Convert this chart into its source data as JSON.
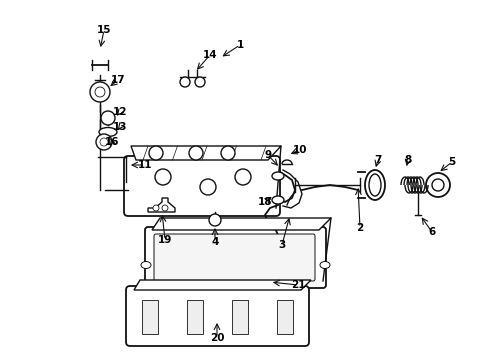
{
  "background_color": "#ffffff",
  "line_color": "#111111",
  "text_color": "#000000",
  "figsize": [
    4.9,
    3.6
  ],
  "dpi": 100
}
